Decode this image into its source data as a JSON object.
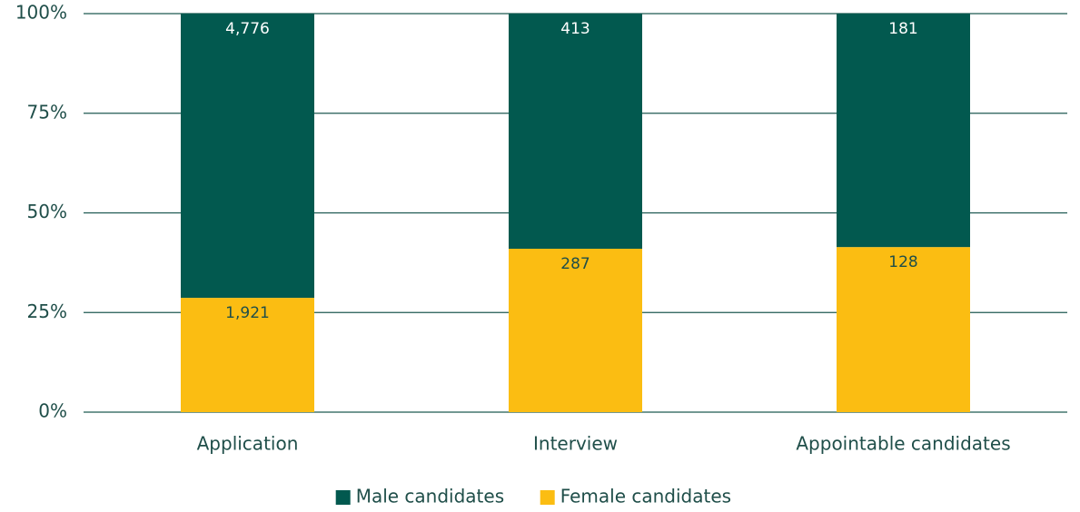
{
  "chart_data": {
    "type": "bar",
    "stacking": "percent",
    "categories": [
      "Application",
      "Interview",
      "Appointable candidates"
    ],
    "series": [
      {
        "name": "Male candidates",
        "color": "#02594f",
        "values": [
          4776,
          413,
          181
        ],
        "value_labels": [
          "4,776",
          "413",
          "181"
        ]
      },
      {
        "name": "Female candidates",
        "color": "#fbbd12",
        "values": [
          1921,
          287,
          128
        ],
        "value_labels": [
          "1,921",
          "287",
          "128"
        ]
      }
    ],
    "ylim": [
      0,
      100
    ],
    "yticks": [
      {
        "value": 0,
        "label": "0%"
      },
      {
        "value": 25,
        "label": "25%"
      },
      {
        "value": 50,
        "label": "50%"
      },
      {
        "value": 75,
        "label": "75%"
      },
      {
        "value": 100,
        "label": "100%"
      }
    ],
    "grid": true,
    "legend": "bottom"
  }
}
